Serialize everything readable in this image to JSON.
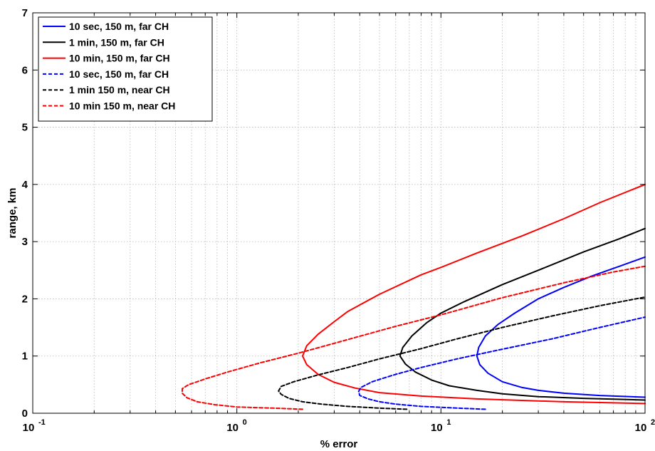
{
  "chart_data": {
    "type": "line",
    "xlabel": "% error",
    "ylabel": "range, km",
    "x_scale": "log",
    "xlim": [
      0.1,
      100
    ],
    "ylim": [
      0,
      7
    ],
    "x_ticks": [
      {
        "value": 0.1,
        "base": "10",
        "exp": "-1"
      },
      {
        "value": 1,
        "base": "10",
        "exp": "0"
      },
      {
        "value": 10,
        "base": "10",
        "exp": "1"
      },
      {
        "value": 100,
        "base": "10",
        "exp": "2"
      }
    ],
    "y_ticks": [
      "0",
      "1",
      "2",
      "3",
      "4",
      "5",
      "6",
      "7"
    ],
    "grid": true,
    "legend_position": "top-left",
    "series": [
      {
        "name": "10 sec, 150 m, far CH",
        "color": "#0000ff",
        "dash": "solid",
        "points": [
          [
            100,
            0.28
          ],
          [
            60,
            0.31
          ],
          [
            40,
            0.35
          ],
          [
            30,
            0.4
          ],
          [
            25,
            0.45
          ],
          [
            20,
            0.55
          ],
          [
            17,
            0.7
          ],
          [
            15.5,
            0.85
          ],
          [
            15,
            1.0
          ],
          [
            15.3,
            1.15
          ],
          [
            16.5,
            1.35
          ],
          [
            19,
            1.55
          ],
          [
            23,
            1.75
          ],
          [
            30,
            2.0
          ],
          [
            40,
            2.2
          ],
          [
            55,
            2.4
          ],
          [
            75,
            2.57
          ],
          [
            100,
            2.73
          ]
        ]
      },
      {
        "name": "1 min, 150 m, far CH",
        "color": "#000000",
        "dash": "solid",
        "points": [
          [
            100,
            0.23
          ],
          [
            50,
            0.26
          ],
          [
            30,
            0.29
          ],
          [
            20,
            0.34
          ],
          [
            15,
            0.4
          ],
          [
            11,
            0.48
          ],
          [
            9,
            0.58
          ],
          [
            7.5,
            0.72
          ],
          [
            6.7,
            0.86
          ],
          [
            6.3,
            1.0
          ],
          [
            6.5,
            1.15
          ],
          [
            7.2,
            1.35
          ],
          [
            8.5,
            1.58
          ],
          [
            10,
            1.75
          ],
          [
            13,
            1.95
          ],
          [
            20,
            2.25
          ],
          [
            30,
            2.5
          ],
          [
            50,
            2.82
          ],
          [
            75,
            3.05
          ],
          [
            100,
            3.23
          ]
        ]
      },
      {
        "name": "10 min, 150 m, far CH",
        "color": "#ff0000",
        "dash": "solid",
        "points": [
          [
            100,
            0.17
          ],
          [
            40,
            0.2
          ],
          [
            15,
            0.25
          ],
          [
            8,
            0.3
          ],
          [
            5,
            0.36
          ],
          [
            3.8,
            0.44
          ],
          [
            3,
            0.54
          ],
          [
            2.5,
            0.68
          ],
          [
            2.2,
            0.85
          ],
          [
            2.1,
            1.0
          ],
          [
            2.2,
            1.18
          ],
          [
            2.5,
            1.38
          ],
          [
            3.0,
            1.6
          ],
          [
            3.5,
            1.78
          ],
          [
            5,
            2.08
          ],
          [
            8,
            2.42
          ],
          [
            10,
            2.55
          ],
          [
            15,
            2.8
          ],
          [
            25,
            3.1
          ],
          [
            40,
            3.4
          ],
          [
            60,
            3.68
          ],
          [
            100,
            4.0
          ]
        ]
      },
      {
        "name": "10 sec, 150 m, far CH",
        "color": "#0000ff",
        "dash": "dashed",
        "points": [
          [
            16.5,
            0.07
          ],
          [
            12,
            0.09
          ],
          [
            8,
            0.12
          ],
          [
            6,
            0.16
          ],
          [
            5,
            0.2
          ],
          [
            4.4,
            0.25
          ],
          [
            4.0,
            0.31
          ],
          [
            3.95,
            0.38
          ],
          [
            4.05,
            0.45
          ],
          [
            4.6,
            0.55
          ],
          [
            6,
            0.68
          ],
          [
            8,
            0.8
          ],
          [
            12,
            0.95
          ],
          [
            20,
            1.12
          ],
          [
            35,
            1.3
          ],
          [
            60,
            1.5
          ],
          [
            100,
            1.68
          ]
        ]
      },
      {
        "name": "1 min 150 m, near CH",
        "color": "#000000",
        "dash": "dashed",
        "points": [
          [
            6.8,
            0.07
          ],
          [
            5,
            0.09
          ],
          [
            3.5,
            0.12
          ],
          [
            2.6,
            0.16
          ],
          [
            2.1,
            0.2
          ],
          [
            1.8,
            0.26
          ],
          [
            1.65,
            0.33
          ],
          [
            1.6,
            0.39
          ],
          [
            1.65,
            0.47
          ],
          [
            1.9,
            0.55
          ],
          [
            2.5,
            0.67
          ],
          [
            3.5,
            0.8
          ],
          [
            5,
            0.95
          ],
          [
            8,
            1.13
          ],
          [
            12,
            1.3
          ],
          [
            20,
            1.5
          ],
          [
            35,
            1.7
          ],
          [
            60,
            1.88
          ],
          [
            100,
            2.03
          ]
        ]
      },
      {
        "name": "10 min 150 m, near CH",
        "color": "#ff0000",
        "dash": "dashed",
        "points": [
          [
            2.1,
            0.07
          ],
          [
            1.5,
            0.09
          ],
          [
            1.0,
            0.11
          ],
          [
            0.78,
            0.15
          ],
          [
            0.64,
            0.2
          ],
          [
            0.57,
            0.27
          ],
          [
            0.54,
            0.35
          ],
          [
            0.54,
            0.43
          ],
          [
            0.58,
            0.5
          ],
          [
            0.7,
            0.6
          ],
          [
            0.9,
            0.72
          ],
          [
            1.3,
            0.88
          ],
          [
            2,
            1.05
          ],
          [
            3.2,
            1.25
          ],
          [
            6,
            1.52
          ],
          [
            10,
            1.72
          ],
          [
            20,
            2.02
          ],
          [
            40,
            2.28
          ],
          [
            70,
            2.47
          ],
          [
            100,
            2.57
          ]
        ]
      }
    ]
  }
}
